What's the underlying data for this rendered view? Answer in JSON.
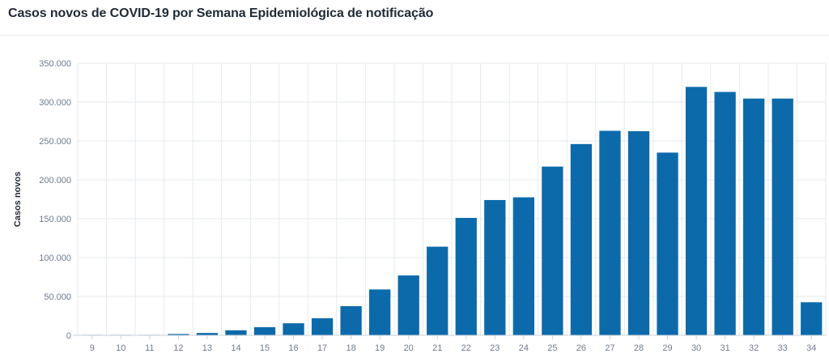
{
  "header": {
    "title": "Casos novos de COVID-19 por Semana Epidemiológica de notificação"
  },
  "colors": {
    "bar": "#0c6aab",
    "grid": "#e6eaee",
    "axis": "#c9d0d8"
  },
  "chart_data": {
    "type": "bar",
    "title": "Casos novos de COVID-19 por Semana Epidemiológica de notificação",
    "xlabel": "",
    "ylabel": "Casos novos",
    "ylim": [
      0,
      350000
    ],
    "yticks": [
      0,
      50000,
      100000,
      150000,
      200000,
      250000,
      300000,
      350000
    ],
    "ytick_labels": [
      "0",
      "50.000",
      "100.000",
      "150.000",
      "200.000",
      "250.000",
      "300.000",
      "350.000"
    ],
    "grid": true,
    "categories": [
      "9",
      "10",
      "11",
      "12",
      "13",
      "14",
      "15",
      "16",
      "17",
      "18",
      "19",
      "20",
      "21",
      "22",
      "23",
      "24",
      "25",
      "26",
      "27",
      "28",
      "29",
      "30",
      "31",
      "32",
      "33",
      "34"
    ],
    "values": [
      30,
      200,
      600,
      1700,
      3000,
      6500,
      10500,
      15500,
      22000,
      37500,
      59000,
      77000,
      114000,
      151000,
      174000,
      177500,
      217000,
      246000,
      263000,
      262500,
      235000,
      319500,
      313000,
      304500,
      304500,
      42500
    ]
  }
}
